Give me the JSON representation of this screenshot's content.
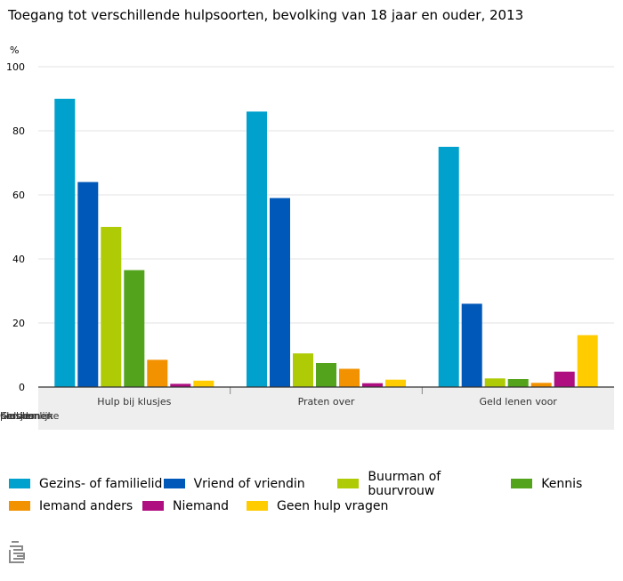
{
  "chart_data": {
    "type": "bar",
    "title": "Toegang tot verschillende hulpsoorten, bevolking van 18 jaar en ouder, 2013",
    "ylabel": "%",
    "xlabel": "",
    "ylim": [
      0,
      100
    ],
    "yticks": [
      0,
      20,
      40,
      60,
      80,
      100
    ],
    "grid": true,
    "legend_position": "bottom",
    "categories": [
      "Hulp bij klusjes",
      "Praten over",
      "Geld lenen voor"
    ],
    "overlap_label_fragments": [
      "Klusjes",
      "persoonlijke",
      "problemen",
      "Geld lenen"
    ],
    "series": [
      {
        "name": "Gezins- of familielid",
        "color": "#00a1cd",
        "values": [
          90,
          86,
          75
        ]
      },
      {
        "name": "Vriend of vriendin",
        "color": "#0058b8",
        "values": [
          64,
          59,
          26
        ]
      },
      {
        "name": "Buurman of buurvrouw",
        "color": "#afcb05",
        "values": [
          50,
          10.5,
          2.7
        ]
      },
      {
        "name": "Kennis",
        "color": "#53a31d",
        "values": [
          36.5,
          7.5,
          2.5
        ]
      },
      {
        "name": "Iemand anders",
        "color": "#f39200",
        "values": [
          8.5,
          5.7,
          1.3
        ]
      },
      {
        "name": "Niemand",
        "color": "#af0e80",
        "values": [
          1,
          1.2,
          4.8
        ]
      },
      {
        "name": "Geen hulp vragen",
        "color": "#ffcc00",
        "values": [
          2,
          2.3,
          16.2
        ]
      }
    ]
  }
}
